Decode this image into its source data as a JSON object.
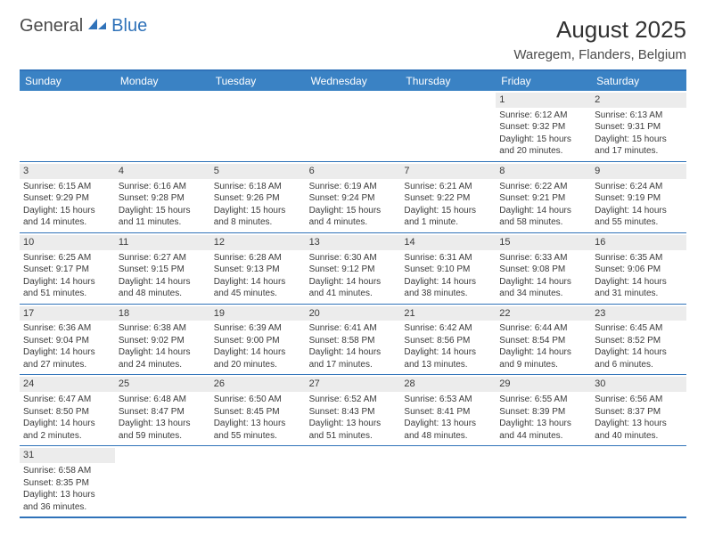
{
  "brand": {
    "part1": "General",
    "part2": "Blue"
  },
  "title": "August 2025",
  "location": "Waregem, Flanders, Belgium",
  "colors": {
    "header_bg": "#3a82c4",
    "border": "#2f72b9",
    "daynum_bg": "#ececec",
    "text": "#3a3a3a",
    "title_text": "#323232"
  },
  "day_headers": [
    "Sunday",
    "Monday",
    "Tuesday",
    "Wednesday",
    "Thursday",
    "Friday",
    "Saturday"
  ],
  "weeks": [
    [
      null,
      null,
      null,
      null,
      null,
      {
        "n": "1",
        "sr": "Sunrise: 6:12 AM",
        "ss": "Sunset: 9:32 PM",
        "dl1": "Daylight: 15 hours",
        "dl2": "and 20 minutes."
      },
      {
        "n": "2",
        "sr": "Sunrise: 6:13 AM",
        "ss": "Sunset: 9:31 PM",
        "dl1": "Daylight: 15 hours",
        "dl2": "and 17 minutes."
      }
    ],
    [
      {
        "n": "3",
        "sr": "Sunrise: 6:15 AM",
        "ss": "Sunset: 9:29 PM",
        "dl1": "Daylight: 15 hours",
        "dl2": "and 14 minutes."
      },
      {
        "n": "4",
        "sr": "Sunrise: 6:16 AM",
        "ss": "Sunset: 9:28 PM",
        "dl1": "Daylight: 15 hours",
        "dl2": "and 11 minutes."
      },
      {
        "n": "5",
        "sr": "Sunrise: 6:18 AM",
        "ss": "Sunset: 9:26 PM",
        "dl1": "Daylight: 15 hours",
        "dl2": "and 8 minutes."
      },
      {
        "n": "6",
        "sr": "Sunrise: 6:19 AM",
        "ss": "Sunset: 9:24 PM",
        "dl1": "Daylight: 15 hours",
        "dl2": "and 4 minutes."
      },
      {
        "n": "7",
        "sr": "Sunrise: 6:21 AM",
        "ss": "Sunset: 9:22 PM",
        "dl1": "Daylight: 15 hours",
        "dl2": "and 1 minute."
      },
      {
        "n": "8",
        "sr": "Sunrise: 6:22 AM",
        "ss": "Sunset: 9:21 PM",
        "dl1": "Daylight: 14 hours",
        "dl2": "and 58 minutes."
      },
      {
        "n": "9",
        "sr": "Sunrise: 6:24 AM",
        "ss": "Sunset: 9:19 PM",
        "dl1": "Daylight: 14 hours",
        "dl2": "and 55 minutes."
      }
    ],
    [
      {
        "n": "10",
        "sr": "Sunrise: 6:25 AM",
        "ss": "Sunset: 9:17 PM",
        "dl1": "Daylight: 14 hours",
        "dl2": "and 51 minutes."
      },
      {
        "n": "11",
        "sr": "Sunrise: 6:27 AM",
        "ss": "Sunset: 9:15 PM",
        "dl1": "Daylight: 14 hours",
        "dl2": "and 48 minutes."
      },
      {
        "n": "12",
        "sr": "Sunrise: 6:28 AM",
        "ss": "Sunset: 9:13 PM",
        "dl1": "Daylight: 14 hours",
        "dl2": "and 45 minutes."
      },
      {
        "n": "13",
        "sr": "Sunrise: 6:30 AM",
        "ss": "Sunset: 9:12 PM",
        "dl1": "Daylight: 14 hours",
        "dl2": "and 41 minutes."
      },
      {
        "n": "14",
        "sr": "Sunrise: 6:31 AM",
        "ss": "Sunset: 9:10 PM",
        "dl1": "Daylight: 14 hours",
        "dl2": "and 38 minutes."
      },
      {
        "n": "15",
        "sr": "Sunrise: 6:33 AM",
        "ss": "Sunset: 9:08 PM",
        "dl1": "Daylight: 14 hours",
        "dl2": "and 34 minutes."
      },
      {
        "n": "16",
        "sr": "Sunrise: 6:35 AM",
        "ss": "Sunset: 9:06 PM",
        "dl1": "Daylight: 14 hours",
        "dl2": "and 31 minutes."
      }
    ],
    [
      {
        "n": "17",
        "sr": "Sunrise: 6:36 AM",
        "ss": "Sunset: 9:04 PM",
        "dl1": "Daylight: 14 hours",
        "dl2": "and 27 minutes."
      },
      {
        "n": "18",
        "sr": "Sunrise: 6:38 AM",
        "ss": "Sunset: 9:02 PM",
        "dl1": "Daylight: 14 hours",
        "dl2": "and 24 minutes."
      },
      {
        "n": "19",
        "sr": "Sunrise: 6:39 AM",
        "ss": "Sunset: 9:00 PM",
        "dl1": "Daylight: 14 hours",
        "dl2": "and 20 minutes."
      },
      {
        "n": "20",
        "sr": "Sunrise: 6:41 AM",
        "ss": "Sunset: 8:58 PM",
        "dl1": "Daylight: 14 hours",
        "dl2": "and 17 minutes."
      },
      {
        "n": "21",
        "sr": "Sunrise: 6:42 AM",
        "ss": "Sunset: 8:56 PM",
        "dl1": "Daylight: 14 hours",
        "dl2": "and 13 minutes."
      },
      {
        "n": "22",
        "sr": "Sunrise: 6:44 AM",
        "ss": "Sunset: 8:54 PM",
        "dl1": "Daylight: 14 hours",
        "dl2": "and 9 minutes."
      },
      {
        "n": "23",
        "sr": "Sunrise: 6:45 AM",
        "ss": "Sunset: 8:52 PM",
        "dl1": "Daylight: 14 hours",
        "dl2": "and 6 minutes."
      }
    ],
    [
      {
        "n": "24",
        "sr": "Sunrise: 6:47 AM",
        "ss": "Sunset: 8:50 PM",
        "dl1": "Daylight: 14 hours",
        "dl2": "and 2 minutes."
      },
      {
        "n": "25",
        "sr": "Sunrise: 6:48 AM",
        "ss": "Sunset: 8:47 PM",
        "dl1": "Daylight: 13 hours",
        "dl2": "and 59 minutes."
      },
      {
        "n": "26",
        "sr": "Sunrise: 6:50 AM",
        "ss": "Sunset: 8:45 PM",
        "dl1": "Daylight: 13 hours",
        "dl2": "and 55 minutes."
      },
      {
        "n": "27",
        "sr": "Sunrise: 6:52 AM",
        "ss": "Sunset: 8:43 PM",
        "dl1": "Daylight: 13 hours",
        "dl2": "and 51 minutes."
      },
      {
        "n": "28",
        "sr": "Sunrise: 6:53 AM",
        "ss": "Sunset: 8:41 PM",
        "dl1": "Daylight: 13 hours",
        "dl2": "and 48 minutes."
      },
      {
        "n": "29",
        "sr": "Sunrise: 6:55 AM",
        "ss": "Sunset: 8:39 PM",
        "dl1": "Daylight: 13 hours",
        "dl2": "and 44 minutes."
      },
      {
        "n": "30",
        "sr": "Sunrise: 6:56 AM",
        "ss": "Sunset: 8:37 PM",
        "dl1": "Daylight: 13 hours",
        "dl2": "and 40 minutes."
      }
    ],
    [
      {
        "n": "31",
        "sr": "Sunrise: 6:58 AM",
        "ss": "Sunset: 8:35 PM",
        "dl1": "Daylight: 13 hours",
        "dl2": "and 36 minutes."
      },
      null,
      null,
      null,
      null,
      null,
      null
    ]
  ]
}
